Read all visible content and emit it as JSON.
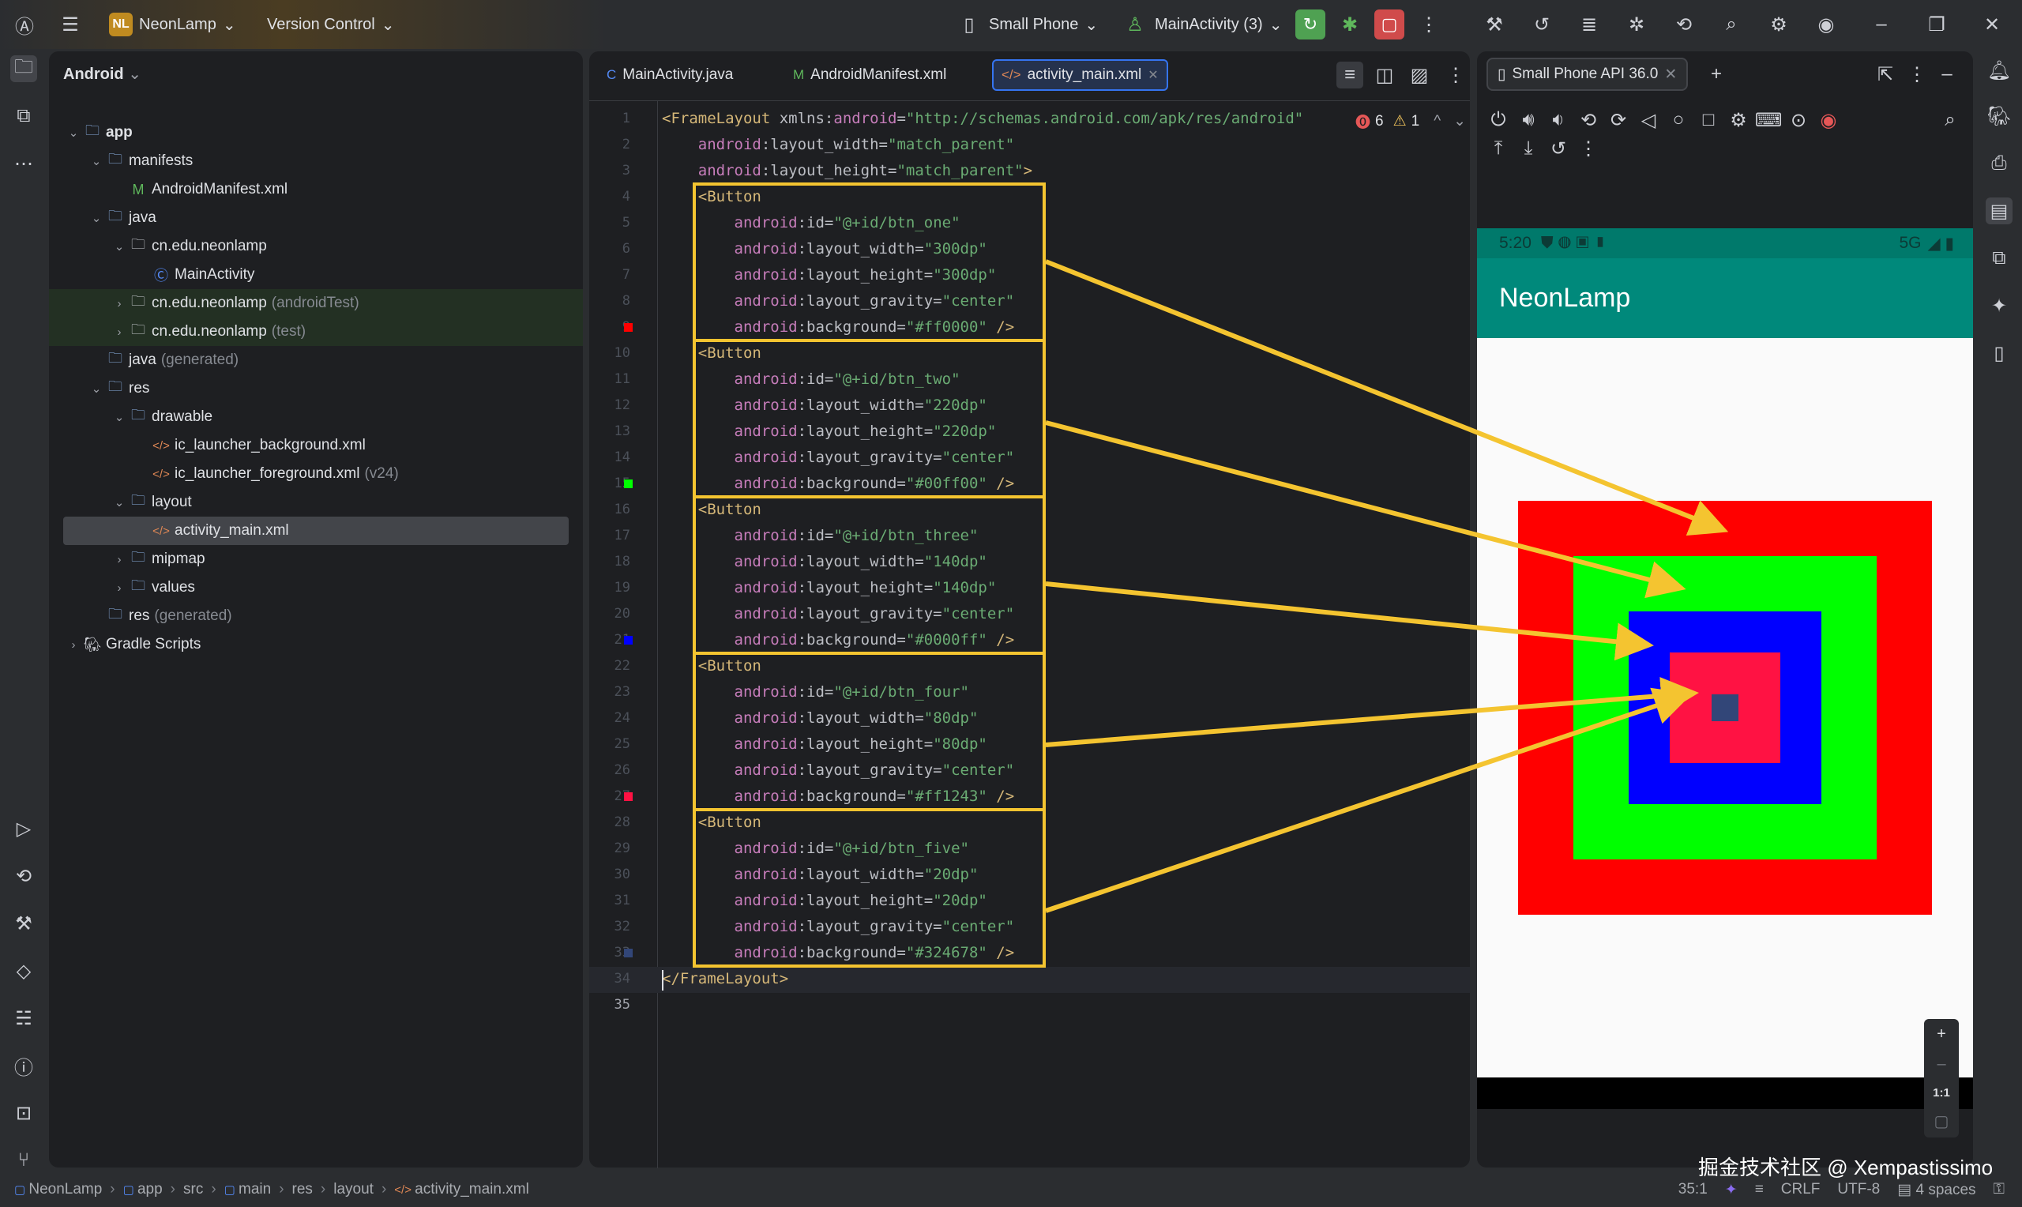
{
  "topbar": {
    "project_initials": "NL",
    "project_name": "NeonLamp",
    "version_control": "Version Control",
    "device": "Small Phone",
    "run_config": "MainActivity (3)"
  },
  "project_panel": {
    "view": "Android",
    "items": [
      {
        "label": "app",
        "level": 0,
        "chev": "down",
        "icon": "folder",
        "bold": true
      },
      {
        "label": "manifests",
        "level": 1,
        "chev": "down",
        "icon": "folder"
      },
      {
        "label": "AndroidManifest.xml",
        "level": 2,
        "icon": "manifest"
      },
      {
        "label": "java",
        "level": 1,
        "chev": "down",
        "icon": "folder"
      },
      {
        "label": "cn.edu.neonlamp",
        "level": 2,
        "chev": "down",
        "icon": "package"
      },
      {
        "label": "MainActivity",
        "level": 3,
        "icon": "class"
      },
      {
        "label": "cn.edu.neonlamp",
        "suffix": "(androidTest)",
        "level": 2,
        "chev": "right",
        "icon": "package",
        "tint": true
      },
      {
        "label": "cn.edu.neonlamp",
        "suffix": "(test)",
        "level": 2,
        "chev": "right",
        "icon": "package",
        "tint": true
      },
      {
        "label": "java",
        "suffix": "(generated)",
        "level": 1,
        "icon": "folder"
      },
      {
        "label": "res",
        "level": 1,
        "chev": "down",
        "icon": "folder"
      },
      {
        "label": "drawable",
        "level": 2,
        "chev": "down",
        "icon": "folder"
      },
      {
        "label": "ic_launcher_background.xml",
        "level": 3,
        "icon": "xml"
      },
      {
        "label": "ic_launcher_foreground.xml",
        "suffix": "(v24)",
        "level": 3,
        "icon": "xml"
      },
      {
        "label": "layout",
        "level": 2,
        "chev": "down",
        "icon": "folder"
      },
      {
        "label": "activity_main.xml",
        "level": 3,
        "icon": "xml",
        "selected": true
      },
      {
        "label": "mipmap",
        "level": 2,
        "chev": "right",
        "icon": "folder"
      },
      {
        "label": "values",
        "level": 2,
        "chev": "right",
        "icon": "folder"
      },
      {
        "label": "res",
        "suffix": "(generated)",
        "level": 1,
        "icon": "folder"
      },
      {
        "label": "Gradle Scripts",
        "level": 0,
        "chev": "right",
        "icon": "gradle"
      }
    ]
  },
  "editor": {
    "tabs": [
      {
        "label": "MainActivity.java",
        "icon": "C"
      },
      {
        "label": "AndroidManifest.xml",
        "icon": "M"
      },
      {
        "label": "activity_main.xml",
        "icon": "</>",
        "active": true
      }
    ],
    "errors": "6",
    "warnings": "1",
    "caret_line": 35,
    "lines": [
      [
        [
          "t-tag",
          "<FrameLayout "
        ],
        [
          "t-attr",
          "xmlns"
        ],
        [
          "t-p",
          ":"
        ],
        [
          "t-ns",
          "android"
        ],
        [
          "t-p",
          "="
        ],
        [
          "t-val",
          "\"http://schemas.android.com/apk/res/android\""
        ]
      ],
      [
        [
          "t-p",
          "    "
        ],
        [
          "t-ns",
          "android"
        ],
        [
          "t-p",
          ":layout_width="
        ],
        [
          "t-val",
          "\"match_parent\""
        ]
      ],
      [
        [
          "t-p",
          "    "
        ],
        [
          "t-ns",
          "android"
        ],
        [
          "t-p",
          ":layout_height="
        ],
        [
          "t-val",
          "\"match_parent\""
        ],
        [
          "t-tag",
          ">"
        ]
      ],
      [
        [
          "t-p",
          "    "
        ],
        [
          "t-tag",
          "<Button"
        ]
      ],
      [
        [
          "t-p",
          "        "
        ],
        [
          "t-ns",
          "android"
        ],
        [
          "t-p",
          ":id="
        ],
        [
          "t-val",
          "\"@+id/btn_one\""
        ]
      ],
      [
        [
          "t-p",
          "        "
        ],
        [
          "t-ns",
          "android"
        ],
        [
          "t-p",
          ":layout_width="
        ],
        [
          "t-val",
          "\"300dp\""
        ]
      ],
      [
        [
          "t-p",
          "        "
        ],
        [
          "t-ns",
          "android"
        ],
        [
          "t-p",
          ":layout_height="
        ],
        [
          "t-val",
          "\"300dp\""
        ]
      ],
      [
        [
          "t-p",
          "        "
        ],
        [
          "t-ns",
          "android"
        ],
        [
          "t-p",
          ":layout_gravity="
        ],
        [
          "t-val",
          "\"center\""
        ]
      ],
      [
        [
          "t-p",
          "        "
        ],
        [
          "t-ns",
          "android"
        ],
        [
          "t-p",
          ":background="
        ],
        [
          "t-val",
          "\"#ff0000\""
        ],
        [
          "t-tag",
          " />"
        ]
      ],
      [
        [
          "t-p",
          "    "
        ],
        [
          "t-tag",
          "<Button"
        ]
      ],
      [
        [
          "t-p",
          "        "
        ],
        [
          "t-ns",
          "android"
        ],
        [
          "t-p",
          ":id="
        ],
        [
          "t-val",
          "\"@+id/btn_two\""
        ]
      ],
      [
        [
          "t-p",
          "        "
        ],
        [
          "t-ns",
          "android"
        ],
        [
          "t-p",
          ":layout_width="
        ],
        [
          "t-val",
          "\"220dp\""
        ]
      ],
      [
        [
          "t-p",
          "        "
        ],
        [
          "t-ns",
          "android"
        ],
        [
          "t-p",
          ":layout_height="
        ],
        [
          "t-val",
          "\"220dp\""
        ]
      ],
      [
        [
          "t-p",
          "        "
        ],
        [
          "t-ns",
          "android"
        ],
        [
          "t-p",
          ":layout_gravity="
        ],
        [
          "t-val",
          "\"center\""
        ]
      ],
      [
        [
          "t-p",
          "        "
        ],
        [
          "t-ns",
          "android"
        ],
        [
          "t-p",
          ":background="
        ],
        [
          "t-val",
          "\"#00ff00\""
        ],
        [
          "t-tag",
          " />"
        ]
      ],
      [
        [
          "t-p",
          "    "
        ],
        [
          "t-tag",
          "<Button"
        ]
      ],
      [
        [
          "t-p",
          "        "
        ],
        [
          "t-ns",
          "android"
        ],
        [
          "t-p",
          ":id="
        ],
        [
          "t-val",
          "\"@+id/btn_three\""
        ]
      ],
      [
        [
          "t-p",
          "        "
        ],
        [
          "t-ns",
          "android"
        ],
        [
          "t-p",
          ":layout_width="
        ],
        [
          "t-val",
          "\"140dp\""
        ]
      ],
      [
        [
          "t-p",
          "        "
        ],
        [
          "t-ns",
          "android"
        ],
        [
          "t-p",
          ":layout_height="
        ],
        [
          "t-val",
          "\"140dp\""
        ]
      ],
      [
        [
          "t-p",
          "        "
        ],
        [
          "t-ns",
          "android"
        ],
        [
          "t-p",
          ":layout_gravity="
        ],
        [
          "t-val",
          "\"center\""
        ]
      ],
      [
        [
          "t-p",
          "        "
        ],
        [
          "t-ns",
          "android"
        ],
        [
          "t-p",
          ":background="
        ],
        [
          "t-val",
          "\"#0000ff\""
        ],
        [
          "t-tag",
          " />"
        ]
      ],
      [
        [
          "t-p",
          "    "
        ],
        [
          "t-tag",
          "<Button"
        ]
      ],
      [
        [
          "t-p",
          "        "
        ],
        [
          "t-ns",
          "android"
        ],
        [
          "t-p",
          ":id="
        ],
        [
          "t-val",
          "\"@+id/btn_four\""
        ]
      ],
      [
        [
          "t-p",
          "        "
        ],
        [
          "t-ns",
          "android"
        ],
        [
          "t-p",
          ":layout_width="
        ],
        [
          "t-val",
          "\"80dp\""
        ]
      ],
      [
        [
          "t-p",
          "        "
        ],
        [
          "t-ns",
          "android"
        ],
        [
          "t-p",
          ":layout_height="
        ],
        [
          "t-val",
          "\"80dp\""
        ]
      ],
      [
        [
          "t-p",
          "        "
        ],
        [
          "t-ns",
          "android"
        ],
        [
          "t-p",
          ":layout_gravity="
        ],
        [
          "t-val",
          "\"center\""
        ]
      ],
      [
        [
          "t-p",
          "        "
        ],
        [
          "t-ns",
          "android"
        ],
        [
          "t-p",
          ":background="
        ],
        [
          "t-val",
          "\"#ff1243\""
        ],
        [
          "t-tag",
          " />"
        ]
      ],
      [
        [
          "t-p",
          "    "
        ],
        [
          "t-tag",
          "<Button"
        ]
      ],
      [
        [
          "t-p",
          "        "
        ],
        [
          "t-ns",
          "android"
        ],
        [
          "t-p",
          ":id="
        ],
        [
          "t-val",
          "\"@+id/btn_five\""
        ]
      ],
      [
        [
          "t-p",
          "        "
        ],
        [
          "t-ns",
          "android"
        ],
        [
          "t-p",
          ":layout_width="
        ],
        [
          "t-val",
          "\"20dp\""
        ]
      ],
      [
        [
          "t-p",
          "        "
        ],
        [
          "t-ns",
          "android"
        ],
        [
          "t-p",
          ":layout_height="
        ],
        [
          "t-val",
          "\"20dp\""
        ]
      ],
      [
        [
          "t-p",
          "        "
        ],
        [
          "t-ns",
          "android"
        ],
        [
          "t-p",
          ":layout_gravity="
        ],
        [
          "t-val",
          "\"center\""
        ]
      ],
      [
        [
          "t-p",
          "        "
        ],
        [
          "t-ns",
          "android"
        ],
        [
          "t-p",
          ":background="
        ],
        [
          "t-val",
          "\"#324678\""
        ],
        [
          "t-tag",
          " />"
        ]
      ],
      [
        [
          "t-tag",
          "</FrameLayout>"
        ]
      ],
      []
    ]
  },
  "buttons": [
    {
      "id": "btn_one",
      "size_dp": 300,
      "color": "#ff0000"
    },
    {
      "id": "btn_two",
      "size_dp": 220,
      "color": "#00ff00"
    },
    {
      "id": "btn_three",
      "size_dp": 140,
      "color": "#0000ff"
    },
    {
      "id": "btn_four",
      "size_dp": 80,
      "color": "#ff1243"
    },
    {
      "id": "btn_five",
      "size_dp": 20,
      "color": "#324678"
    }
  ],
  "emulator": {
    "tab": "Small Phone API 36.0",
    "time": "5:20",
    "network": "5G",
    "app_title": "NeonLamp",
    "app_bar_color": "#00897b",
    "zoom_label": "1:1"
  },
  "statusbar": {
    "breadcrumb": [
      "NeonLamp",
      "app",
      "src",
      "main",
      "res",
      "layout",
      "activity_main.xml"
    ],
    "position": "35:1",
    "line_sep": "CRLF",
    "encoding": "UTF-8",
    "indent": "4 spaces"
  },
  "watermark": "掘金技术社区 @ Xempastissimo",
  "annotation_color": "#f4c430"
}
